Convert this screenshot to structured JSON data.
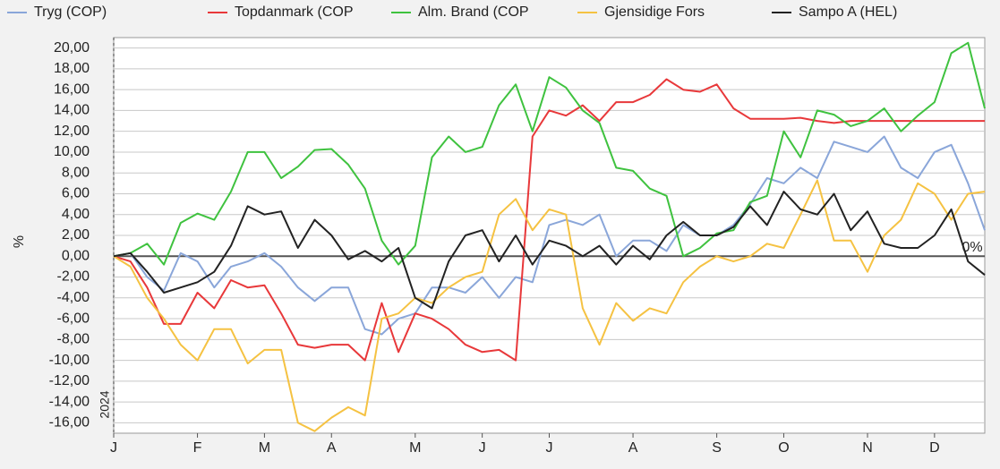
{
  "chart_data": {
    "type": "line",
    "ylabel": "%",
    "year_label": "2024",
    "zero_label": "0%",
    "categories": [
      "J",
      null,
      null,
      null,
      null,
      "F",
      null,
      null,
      null,
      "M",
      null,
      null,
      null,
      "A",
      null,
      null,
      null,
      null,
      "M",
      null,
      null,
      null,
      "J",
      null,
      null,
      null,
      "J",
      null,
      null,
      null,
      null,
      "A",
      null,
      null,
      null,
      null,
      "S",
      null,
      null,
      null,
      "O",
      null,
      null,
      null,
      null,
      "N",
      null,
      null,
      null,
      "D",
      null,
      null,
      null
    ],
    "series": [
      {
        "name": "Tryg (COP)",
        "color": "#8aa6d9",
        "values": [
          0,
          0.3,
          -2,
          -3.3,
          0.3,
          -0.5,
          -3,
          -1,
          -0.5,
          0.3,
          -1,
          -3,
          -4.3,
          -3,
          -3,
          -7,
          -7.5,
          -6,
          -5.5,
          -3,
          -3,
          -3.5,
          -2,
          -4,
          -2,
          -2.5,
          3,
          3.5,
          3,
          4,
          0,
          1.5,
          1.5,
          0.5,
          3,
          2,
          2,
          3,
          5,
          7.5,
          7,
          8.5,
          7.5,
          11,
          10.5,
          10,
          11.5,
          8.5,
          7.5,
          10,
          10.7,
          7,
          2.5
        ]
      },
      {
        "name": "Topdanmark (COP",
        "color": "#e8383a",
        "values": [
          0,
          -0.5,
          -3,
          -6.5,
          -6.5,
          -3.5,
          -5,
          -2.3,
          -3,
          -2.8,
          -5.5,
          -8.5,
          -8.8,
          -8.5,
          -8.5,
          -10,
          -4.5,
          -9.2,
          -5.5,
          -6,
          -7,
          -8.5,
          -9.2,
          -9,
          -10,
          11.5,
          14,
          13.5,
          14.5,
          13,
          14.8,
          14.8,
          15.5,
          17,
          16,
          15.8,
          16.5,
          14.2,
          13.2,
          13.2,
          13.2,
          13.3,
          13,
          12.8,
          13,
          13,
          13,
          13,
          13,
          13,
          13,
          13,
          13
        ]
      },
      {
        "name": "Alm. Brand (COP",
        "color": "#3fc23f",
        "values": [
          0,
          0.3,
          1.2,
          -0.8,
          3.2,
          4.1,
          3.5,
          6.2,
          10,
          10,
          7.5,
          8.6,
          10.2,
          10.3,
          8.8,
          6.5,
          1.5,
          -0.8,
          1,
          9.5,
          11.5,
          10,
          10.5,
          14.5,
          16.5,
          12,
          17.2,
          16.2,
          14,
          12.8,
          8.5,
          8.2,
          6.5,
          5.8,
          0,
          0.8,
          2.2,
          2.5,
          5.2,
          5.8,
          12,
          9.5,
          14,
          13.6,
          12.5,
          13,
          14.2,
          12,
          13.5,
          14.8,
          19.5,
          20.5,
          14.2
        ]
      },
      {
        "name": "Gjensidige Fors",
        "color": "#f5c242",
        "values": [
          0,
          -1,
          -4,
          -6,
          -8.5,
          -10,
          -7,
          -7,
          -10.3,
          -9,
          -9,
          -16,
          -16.8,
          -15.5,
          -14.5,
          -15.3,
          -6,
          -5.5,
          -4,
          -4.5,
          -3,
          -2,
          -1.5,
          4,
          5.5,
          2.5,
          4.5,
          4,
          -5,
          -8.5,
          -4.5,
          -6.2,
          -5,
          -5.5,
          -2.5,
          -1,
          0,
          -0.5,
          0,
          1.2,
          0.8,
          4,
          7.3,
          1.5,
          1.5,
          -1.5,
          2,
          3.5,
          7,
          6,
          3.5,
          6,
          6.2
        ]
      },
      {
        "name": "Sampo A (HEL)",
        "color": "#222222",
        "values": [
          0,
          0.3,
          -1.5,
          -3.5,
          -3,
          -2.5,
          -1.5,
          1,
          4.8,
          4,
          4.3,
          0.8,
          3.5,
          2,
          -0.3,
          0.5,
          -0.5,
          0.8,
          -4,
          -5,
          -0.5,
          2,
          2.5,
          -0.5,
          2,
          -0.8,
          1.5,
          1,
          0,
          1,
          -0.8,
          1,
          -0.3,
          2,
          3.3,
          2,
          2,
          2.8,
          4.8,
          3,
          6.2,
          4.5,
          4,
          6,
          2.5,
          4.3,
          1.2,
          0.8,
          0.8,
          2,
          4.5,
          -0.5,
          -1.8
        ]
      }
    ],
    "ylim": [
      -17,
      21
    ],
    "yticks": [
      {
        "value": -16,
        "label": "-16,00"
      },
      {
        "value": -14,
        "label": "-14,00"
      },
      {
        "value": -12,
        "label": "-12,00"
      },
      {
        "value": -10,
        "label": "-10,00"
      },
      {
        "value": -8,
        "label": "-8,00"
      },
      {
        "value": -6,
        "label": "-6,00"
      },
      {
        "value": -4,
        "label": "-4,00"
      },
      {
        "value": -2,
        "label": "-2,00"
      },
      {
        "value": 0,
        "label": "0,00"
      },
      {
        "value": 2,
        "label": "2,00"
      },
      {
        "value": 4,
        "label": "4,00"
      },
      {
        "value": 6,
        "label": "6,00"
      },
      {
        "value": 8,
        "label": "8,00"
      },
      {
        "value": 10,
        "label": "10,00"
      },
      {
        "value": 12,
        "label": "12,00"
      },
      {
        "value": 14,
        "label": "14,00"
      },
      {
        "value": 16,
        "label": "16,00"
      },
      {
        "value": 18,
        "label": "18,00"
      },
      {
        "value": 20,
        "label": "20,00"
      }
    ],
    "grid": true
  }
}
